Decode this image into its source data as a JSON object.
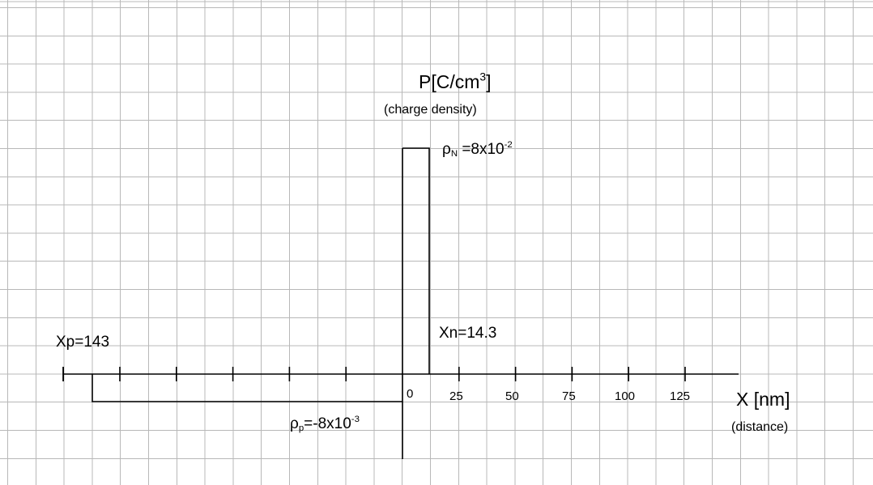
{
  "y_axis": {
    "title_main": "P[C/cm",
    "title_sup": "3",
    "title_end": "]",
    "subtitle": "(charge density)"
  },
  "x_axis": {
    "title": "X [nm]",
    "subtitle": "(distance)",
    "ticks": [
      "0",
      "25",
      "50",
      "75",
      "100",
      "125"
    ]
  },
  "annotations": {
    "rho_n_symbol": "ρ",
    "rho_n_sub": "N",
    "rho_n_value": " =8x10",
    "rho_n_exp": "-2",
    "rho_p_symbol": "ρ",
    "rho_p_sub": "p",
    "rho_p_value": "=-8x10",
    "rho_p_exp": "-3",
    "xn": "Xn=14.3",
    "xp": "Xp=143"
  },
  "chart_data": {
    "type": "area",
    "xlabel": "X [nm]",
    "ylabel": "P[C/cm3]",
    "x_ticks": [
      0,
      25,
      50,
      75,
      100,
      125
    ],
    "regions": [
      {
        "x_start": -143,
        "x_end": 0,
        "value": -0.008
      },
      {
        "x_start": 0,
        "x_end": 14.3,
        "value": 0.08
      }
    ],
    "grid": true
  }
}
